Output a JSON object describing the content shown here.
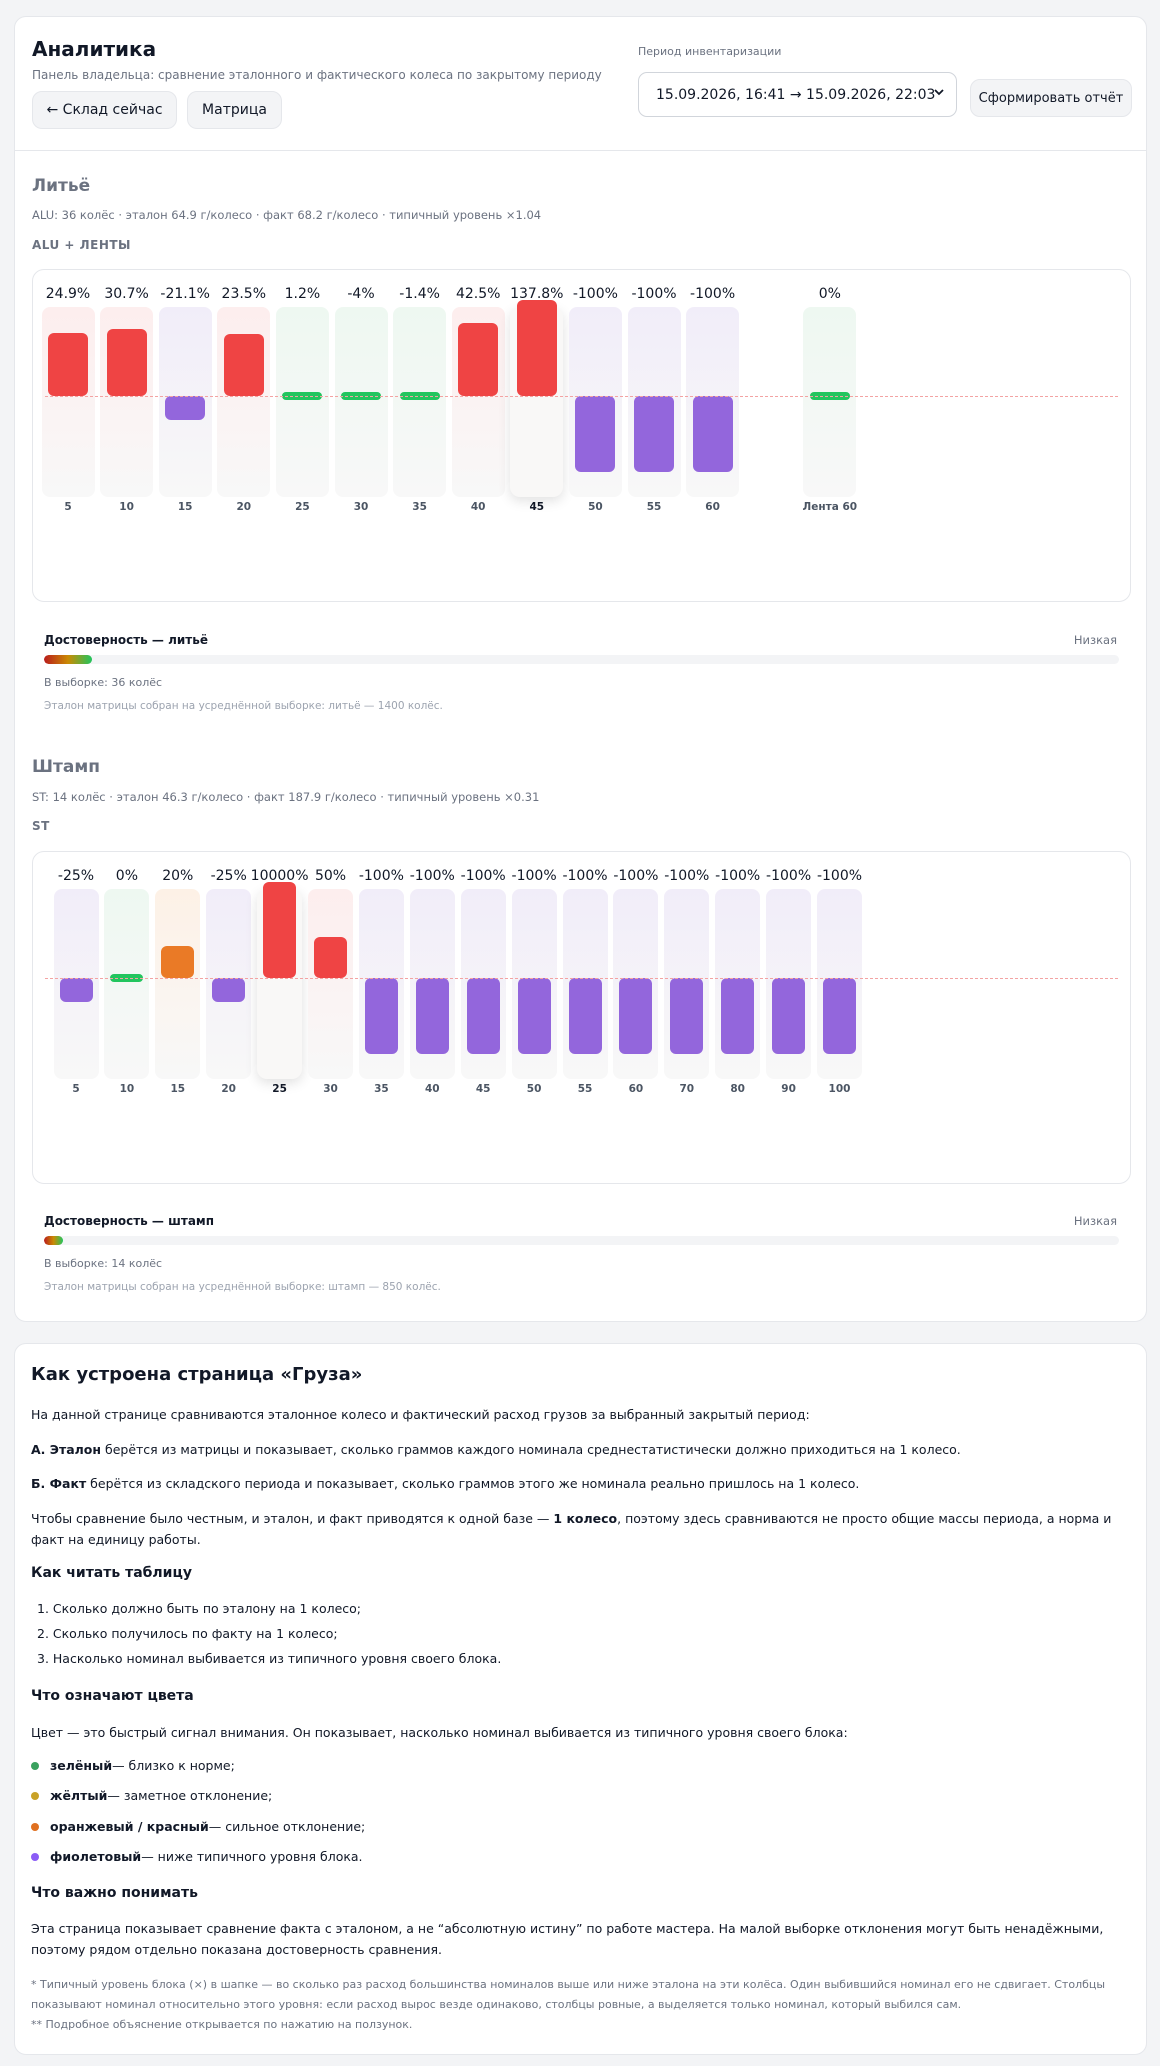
{
  "header": {
    "title": "Аналитика",
    "subtitle": "Панель владельца: сравнение эталонного и фактического колеса по закрытому периоду",
    "back_label": "← Склад сейчас",
    "matrix_label": "Матрица",
    "period_label": "Период инвентаризации",
    "period_value": "15.09.2026, 16:41 → 15.09.2026, 22:03",
    "report_label": "Сформировать отчёт"
  },
  "colors": {
    "green": "#22c55e",
    "red": "#ef4444",
    "orange": "#ea7a26",
    "purple": "#9366dc",
    "bg_green": "#eef8f1",
    "bg_red": "#fdeeee",
    "bg_orange": "#fdf1e6",
    "bg_purple": "#f1edf9"
  },
  "sections": {
    "cast": {
      "title": "Литьё",
      "meta": "ALU: 36 колёс · эталон 64.9 г/колесо · факт 68.2 г/колесо · типичный уровень ×1.04",
      "code": "ALU + ЛЕНТЫ",
      "reliability_title": "Достоверность — литьё",
      "reliability_level": "Низкая",
      "reliability_fraction": 0.045,
      "sample": "В выборке: 36 колёс",
      "note": "Эталон матрицы собран на усреднённой выборке: литьё — 1400 колёс."
    },
    "stamp": {
      "title": "Штамп",
      "meta": "ST: 14 колёс · эталон 46.3 г/колесо · факт 187.9 г/колесо · типичный уровень ×0.31",
      "code": "ST",
      "reliability_title": "Достоверность — штамп",
      "reliability_level": "Низкая",
      "reliability_fraction": 0.018,
      "sample": "В выборке: 14 колёс",
      "note": "Эталон матрицы собран на усреднённой выборке: штамп — 850 колёс."
    }
  },
  "chart_data": [
    {
      "type": "bar",
      "categories": [
        "5",
        "10",
        "15",
        "20",
        "25",
        "30",
        "35",
        "40",
        "45",
        "50",
        "55",
        "60",
        "Лента 60"
      ],
      "labels": [
        "24.9%",
        "30.7%",
        "-21.1%",
        "23.5%",
        "1.2%",
        "-4%",
        "-1.4%",
        "42.5%",
        "137.8%",
        "-100%",
        "-100%",
        "-100%",
        "0%"
      ],
      "values": [
        24.9,
        30.7,
        -21.1,
        23.5,
        1.2,
        -4,
        -1.4,
        42.5,
        137.8,
        -100,
        -100,
        -100,
        0
      ],
      "status": [
        "red",
        "red",
        "purple",
        "red",
        "green",
        "green",
        "green",
        "red",
        "red",
        "purple",
        "purple",
        "purple",
        "green"
      ],
      "selected": "45",
      "baseline": 0
    },
    {
      "type": "bar",
      "categories": [
        "5",
        "10",
        "15",
        "20",
        "25",
        "30",
        "35",
        "40",
        "45",
        "50",
        "55",
        "60",
        "70",
        "80",
        "90",
        "100"
      ],
      "labels": [
        "-25%",
        "0%",
        "20%",
        "-25%",
        "10000%",
        "50%",
        "-100%",
        "-100%",
        "-100%",
        "-100%",
        "-100%",
        "-100%",
        "-100%",
        "-100%",
        "-100%",
        "-100%"
      ],
      "values": [
        -25,
        0,
        20,
        -25,
        10000,
        50,
        -100,
        -100,
        -100,
        -100,
        -100,
        -100,
        -100,
        -100,
        -100,
        -100
      ],
      "status": [
        "purple",
        "green",
        "orange",
        "purple",
        "red",
        "red",
        "purple",
        "purple",
        "purple",
        "purple",
        "purple",
        "purple",
        "purple",
        "purple",
        "purple",
        "purple"
      ],
      "selected": "25",
      "baseline": 0
    }
  ],
  "help": {
    "title": "Как устроена страница «Груза»",
    "intro": "На данной странице сравниваются эталонное колесо и фактический расход грузов за выбранный закрытый период:",
    "a_bold": "А. Эталон",
    "a_text": " берётся из матрицы и показывает, сколько граммов каждого номинала среднестатистически должно приходиться на 1 колесо.",
    "b_bold": "Б. Факт",
    "b_text": " берётся из складского периода и показывает, сколько граммов этого же номинала реально пришлось на 1 колесо.",
    "base_pre": "Чтобы сравнение было честным, и эталон, и факт приводятся к одной базе — ",
    "base_bold": "1 колесо",
    "base_post": ", поэтому здесь сравниваются не просто общие массы периода, а норма и факт на единицу работы.",
    "read_title": "Как читать таблицу",
    "read_items": [
      "1. Сколько должно быть по эталону на 1 колесо;",
      "2. Сколько получилось по факту на 1 колесо;",
      "3. Насколько номинал выбивается из типичного уровня своего блока."
    ],
    "colors_title": "Что означают цвета",
    "colors_intro": "Цвет — это быстрый сигнал внимания. Он показывает, насколько номинал выбивается из типичного уровня своего блока:",
    "legend": [
      {
        "bold": "зелёный",
        "text": " — близко к норме;",
        "color": "#3aa15e"
      },
      {
        "bold": "жёлтый",
        "text": " — заметное отклонение;",
        "color": "#c9a227"
      },
      {
        "bold": "оранжевый / красный",
        "text": " — сильное отклонение;",
        "color": "#e07020"
      },
      {
        "bold": "фиолетовый",
        "text": " — ниже типичного уровня блока.",
        "color": "#8b5cf6"
      }
    ],
    "important_title": "Что важно понимать",
    "important_text": "Эта страница показывает сравнение факта с эталоном, а не “абсолютную истину” по работе мастера. На малой выборке отклонения могут быть ненадёжными, поэтому рядом отдельно показана достоверность сравнения.",
    "footnote1": "* Типичный уровень блока (×) в шапке — во сколько раз расход большинства номиналов выше или ниже эталона на эти колёса. Один выбившийся номинал его не сдвигает. Столбцы показывают номинал относительно этого уровня: если расход вырос везде одинаково, столбцы ровные, а выделяется только номинал, который выбился сам.",
    "footnote2": "** Подробное объяснение открывается по нажатию на ползунок."
  }
}
